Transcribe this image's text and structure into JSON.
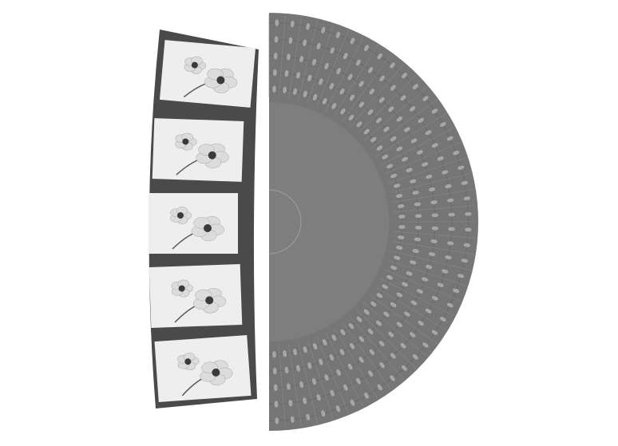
{
  "photo": {
    "subject": "film-strip-and-half-disc",
    "film_strip": {
      "frame_count": 5,
      "frames": [
        {
          "subject": "flower-frame"
        },
        {
          "subject": "flower-frame"
        },
        {
          "subject": "flower-frame"
        },
        {
          "subject": "flower-frame"
        },
        {
          "subject": "flower-frame"
        }
      ]
    },
    "disc": {
      "ring_count": 5,
      "cells_per_ring": 40
    },
    "colors": {
      "background": "#ffffff",
      "film": "#4a4a4a",
      "frame": "#eeeeee",
      "disc": "#767676",
      "disc_center": "#7e7e7e",
      "ring_highlight": "#b8b8b8",
      "flower": "#dcdcdc",
      "flower_center": "#3a3a3a",
      "stem": "#5a5a5a"
    }
  }
}
